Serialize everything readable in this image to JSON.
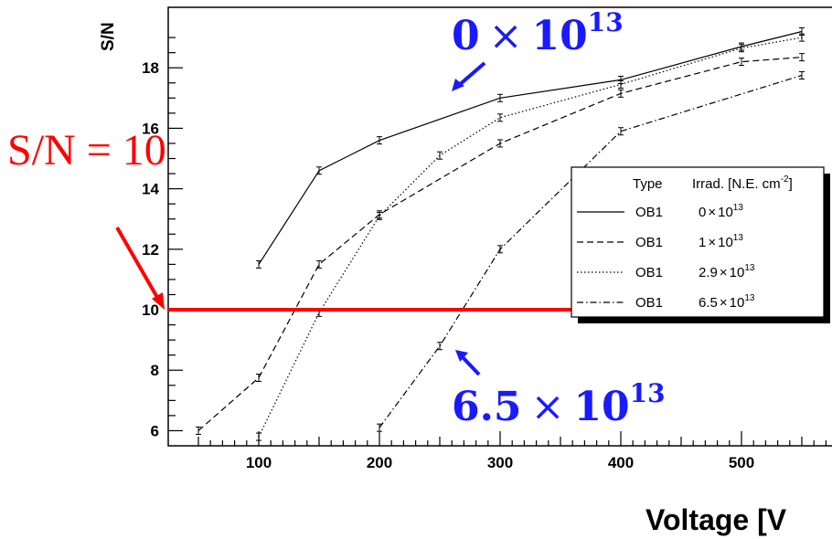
{
  "chart_data": {
    "type": "line",
    "xlabel": "Voltage [V",
    "ylabel": "S/N",
    "xlim": [
      25,
      575
    ],
    "ylim": [
      5.5,
      20.0
    ],
    "xticks": [
      100,
      200,
      300,
      400,
      500
    ],
    "yticks": [
      6,
      8,
      10,
      12,
      14,
      16,
      18
    ],
    "grid": false,
    "legend_placement": "right",
    "legend": {
      "header_type": "Type",
      "header_irrad": "Irrad. [N.E. cm",
      "header_irrad_sup": "-2",
      "header_irrad_close": "]"
    },
    "series": [
      {
        "type_label": "OB1",
        "irrad_mantissa": "0",
        "irrad_times": "×",
        "irrad_base": "10",
        "irrad_exp": "13",
        "dash": "none",
        "x": [
          100,
          150,
          200,
          300,
          400,
          500,
          550
        ],
        "y": [
          11.5,
          14.6,
          15.6,
          17.0,
          17.6,
          18.7,
          19.2
        ]
      },
      {
        "type_label": "OB1",
        "irrad_mantissa": "1",
        "irrad_times": "×",
        "irrad_base": "10",
        "irrad_exp": "13",
        "dash": "7,4",
        "x": [
          50,
          100,
          150,
          200,
          300,
          400,
          500,
          550
        ],
        "y": [
          6.0,
          7.75,
          11.5,
          13.15,
          15.5,
          17.15,
          18.2,
          18.35
        ]
      },
      {
        "type_label": "OB1",
        "irrad_mantissa": "2.9",
        "irrad_times": "×",
        "irrad_base": "10",
        "irrad_exp": "13",
        "dash": "1.5,2.5",
        "x": [
          100,
          150,
          200,
          250,
          300,
          400,
          500,
          550
        ],
        "y": [
          5.8,
          9.9,
          13.1,
          15.1,
          16.35,
          17.45,
          18.65,
          19.0
        ]
      },
      {
        "type_label": "OB1",
        "irrad_mantissa": "6.5",
        "irrad_times": "×",
        "irrad_base": "10",
        "irrad_exp": "13",
        "dash": "7,3,1.5,3",
        "x": [
          200,
          250,
          300,
          400,
          550
        ],
        "y": [
          6.1,
          8.8,
          12.0,
          15.9,
          17.75
        ]
      }
    ],
    "threshold": {
      "value": 10,
      "color": "#ff0000"
    },
    "annotations": {
      "top_mantissa": "0",
      "top_times": "×",
      "top_base": "10",
      "top_exp": "13",
      "bottom_mantissa": "6.5",
      "bottom_times": "×",
      "bottom_base": "10",
      "bottom_exp": "13",
      "threshold_label": "S/N = 10",
      "blue_color": "#1a1aff",
      "red_color": "#ff0000"
    }
  }
}
